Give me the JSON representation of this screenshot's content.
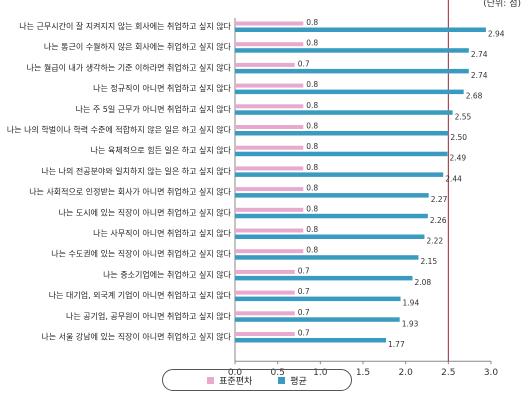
{
  "unit_label": "(단위: 점)",
  "colors": {
    "sd": "#e8a9cf",
    "mean": "#3a9bc1",
    "reference": "#9b2335",
    "axis": "#888888"
  },
  "chart_data": {
    "type": "bar",
    "orientation": "horizontal",
    "title": "",
    "xlabel": "",
    "ylabel": "",
    "xlim": [
      0,
      3.0
    ],
    "xticks": [
      "0.0",
      "0.5",
      "1.0",
      "1.5",
      "2.0",
      "2.5",
      "3.0"
    ],
    "reference_line": 2.5,
    "grid": false,
    "legend_position": "bottom",
    "categories": [
      "나는 근무시간이 잘 지켜지지 않는 회사에는 취업하고 싶지 않다",
      "나는 통근이 수월하지 않은 회사에는 취업하고 싶지 않다",
      "나는 월급이 내가 생각하는 기준 이하라면 취업하고 싶지 않다",
      "나는 정규직이 아니면 취업하고 싶지 않다",
      "나는 주 5일 근무가 아니면 취업하고 싶지 않다",
      "나는 나의 학벌이나 학력 수준에 적합하지 않은 일은 하고 싶지 않다",
      "나는 육체적으로 힘든 일은 하고 싶지 않다",
      "나는 나의 전공분야와 일치하지 않는 일은 하고 싶지 않다",
      "나는 사회적으로 인정받는 회사가 아니면 취업하고 싶지 않다",
      "나는 도시에 있는 직장이 아니면 취업하고 싶지 않다",
      "나는 사무직이 아니면 취업하고 싶지 않다",
      "나는 수도권에 있는 직장이 아니면 취업하고 싶지 않다",
      "나는 중소기업에는 취업하고 싶지 않다",
      "나는 대기업, 외국계 기업이 아니면 취업하고 싶지 않다",
      "나는 공기업, 공무원이 아니면 취업하고 싶지 않다",
      "나는 서울 강남에 있는 직장이 아니면 취업하고 싶지 않다"
    ],
    "series": [
      {
        "name": "표준편차",
        "color": "#e8a9cf",
        "values": [
          0.8,
          0.8,
          0.7,
          0.8,
          0.8,
          0.8,
          0.8,
          0.8,
          0.8,
          0.8,
          0.8,
          0.8,
          0.7,
          0.7,
          0.7,
          0.7
        ],
        "labels": [
          "0.8",
          "0.8",
          "0.7",
          "0.8",
          "0.8",
          "0.8",
          "0.8",
          "0.8",
          "0.8",
          "0.8",
          "0.8",
          "0.8",
          "0.7",
          "0.7",
          "0.7",
          "0.7"
        ]
      },
      {
        "name": "평균",
        "color": "#3a9bc1",
        "values": [
          2.94,
          2.74,
          2.74,
          2.68,
          2.55,
          2.5,
          2.49,
          2.44,
          2.27,
          2.26,
          2.22,
          2.15,
          2.08,
          1.94,
          1.93,
          1.77
        ],
        "labels": [
          "2.94",
          "2.74",
          "2.74",
          "2.68",
          "2.55",
          "2.50",
          "2.49",
          "2.44",
          "2.27",
          "2.26",
          "2.22",
          "2.15",
          "2.08",
          "1.94",
          "1.93",
          "1.77"
        ]
      }
    ]
  }
}
